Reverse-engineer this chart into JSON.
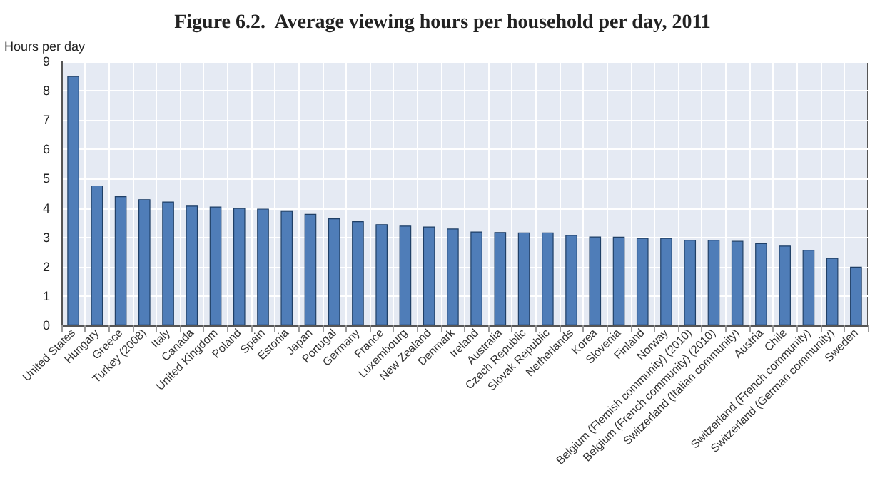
{
  "chart_data": {
    "type": "bar",
    "title": "Figure 6.2.  Average viewing hours per household per day, 2011",
    "ylabel": "Hours per day",
    "categories": [
      "United States",
      "Hungary",
      "Greece",
      "Turkey (2008)",
      "Italy",
      "Canada",
      "United Kingdom",
      "Poland",
      "Spain",
      "Estonia",
      "Japan",
      "Portugal",
      "Germany",
      "France",
      "Luxembourg",
      "New Zealand",
      "Denmark",
      "Ireland",
      "Australia",
      "Czech Republic",
      "Slovak Republic",
      "Netherlands",
      "Korea",
      "Slovenia",
      "Finland",
      "Norway",
      "Belgium (Flemish community) (2010)",
      "Belgium (French community) (2010)",
      "Switzerland (Italian community)",
      "Austria",
      "Chile",
      "Switzerland (French community)",
      "Switzerland (German community)",
      "Sweden"
    ],
    "values": [
      8.5,
      4.77,
      4.4,
      4.3,
      4.22,
      4.08,
      4.05,
      4.0,
      3.98,
      3.9,
      3.8,
      3.65,
      3.55,
      3.45,
      3.4,
      3.37,
      3.3,
      3.2,
      3.18,
      3.17,
      3.17,
      3.08,
      3.03,
      3.02,
      2.98,
      2.98,
      2.92,
      2.92,
      2.88,
      2.8,
      2.72,
      2.58,
      2.3,
      2.0
    ],
    "color": "#4f7db8",
    "ylim": [
      0,
      9
    ],
    "yticks": [
      0,
      1,
      2,
      3,
      4,
      5,
      6,
      7,
      8,
      9
    ],
    "grid": true
  }
}
